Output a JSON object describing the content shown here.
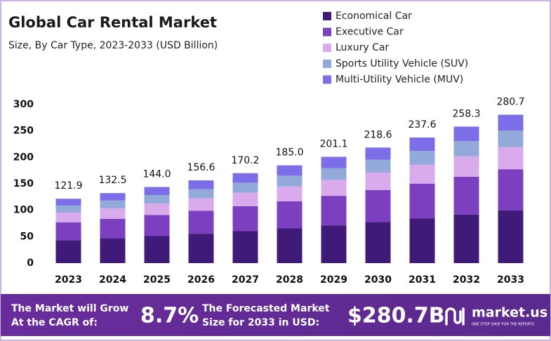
{
  "chart_data": {
    "type": "stacked-bar",
    "title": "Global Car Rental Market",
    "subtitle": "Size, By Car Type, 2023-2033 (USD Billion)",
    "categories": [
      "2023",
      "2024",
      "2025",
      "2026",
      "2027",
      "2028",
      "2029",
      "2030",
      "2031",
      "2032",
      "2033"
    ],
    "series": [
      {
        "name": "Economical Car",
        "color": "#3f1a78",
        "values": [
          43.3,
          47.0,
          51.1,
          55.6,
          60.4,
          65.7,
          71.4,
          77.6,
          84.3,
          91.7,
          99.6
        ]
      },
      {
        "name": "Executive Car",
        "color": "#7b3fbf",
        "values": [
          33.9,
          36.8,
          40.0,
          43.5,
          47.3,
          51.4,
          55.9,
          60.8,
          66.1,
          71.8,
          78.0
        ]
      },
      {
        "name": "Luxury Car",
        "color": "#d9aaec",
        "values": [
          18.3,
          19.9,
          21.6,
          23.5,
          25.5,
          27.8,
          30.2,
          32.8,
          35.6,
          38.7,
          42.1
        ]
      },
      {
        "name": "Sports Utility Vehicle (SUV)",
        "color": "#93a9d9",
        "values": [
          13.5,
          14.7,
          16.0,
          17.4,
          18.9,
          20.5,
          22.3,
          24.3,
          26.4,
          28.7,
          31.2
        ]
      },
      {
        "name": "Multi-Utility Vehicle (MUV)",
        "color": "#7b6ee8",
        "values": [
          12.9,
          14.1,
          15.3,
          16.6,
          18.1,
          19.6,
          21.3,
          23.1,
          25.2,
          27.4,
          29.8
        ]
      }
    ],
    "totals": [
      121.9,
      132.5,
      144.0,
      156.6,
      170.2,
      185.0,
      201.1,
      218.6,
      237.6,
      258.3,
      280.7
    ],
    "total_labels": [
      "121.9",
      "132.5",
      "144.0",
      "156.6",
      "170.2",
      "185.0",
      "201.1",
      "218.6",
      "237.6",
      "258.3",
      "280.7"
    ],
    "ylim": [
      0,
      300
    ],
    "yticks": [
      0,
      50,
      100,
      150,
      200,
      250,
      300
    ],
    "grid": false,
    "legend": "top-right"
  },
  "footer": {
    "cagr_text": [
      "The Market will Grow",
      "At the CAGR of:"
    ],
    "cagr_value": "8.7%",
    "forecast_text": [
      "The Forecasted Market",
      "Size for 2033 in USD:"
    ],
    "forecast_value": "$280.7B",
    "brand": "market.us",
    "tagline": "ONE STOP SHOP FOR THE REPORTS"
  }
}
